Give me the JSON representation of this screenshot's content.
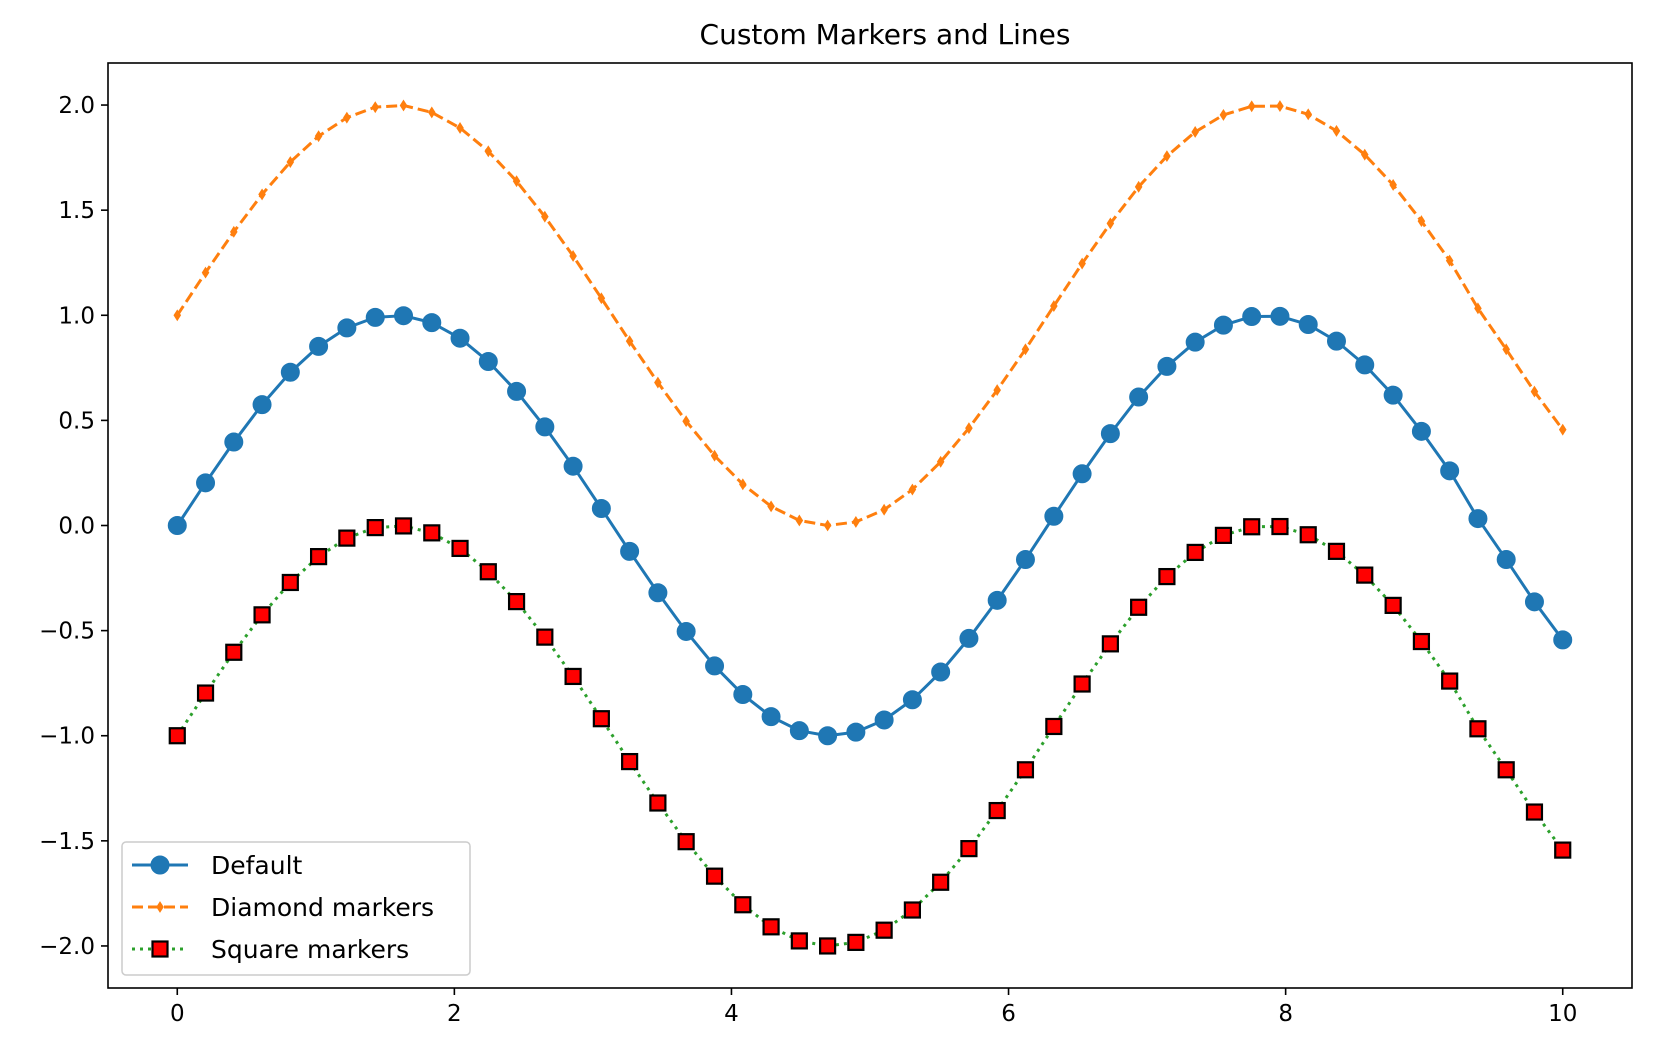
{
  "chart_data": {
    "type": "line",
    "title": "Custom Markers and Lines",
    "xlabel": "",
    "ylabel": "",
    "xlim": [
      -0.5,
      10.5
    ],
    "ylim": [
      -2.2,
      2.2
    ],
    "xticks": [
      0,
      2,
      4,
      6,
      8,
      10
    ],
    "xtick_labels": [
      "0",
      "2",
      "4",
      "6",
      "8",
      "10"
    ],
    "yticks": [
      -2.0,
      -1.5,
      -1.0,
      -0.5,
      0.0,
      0.5,
      1.0,
      1.5,
      2.0
    ],
    "ytick_labels": [
      "−2.0",
      "−1.5",
      "−1.0",
      "−0.5",
      "0.0",
      "0.5",
      "1.0",
      "1.5",
      "2.0"
    ],
    "grid": false,
    "legend_position": "lower-left",
    "x": [
      0.0,
      0.204,
      0.408,
      0.612,
      0.816,
      1.02,
      1.224,
      1.429,
      1.633,
      1.837,
      2.041,
      2.245,
      2.449,
      2.653,
      2.857,
      3.061,
      3.265,
      3.469,
      3.673,
      3.878,
      4.082,
      4.286,
      4.49,
      4.694,
      4.898,
      5.102,
      5.306,
      5.51,
      5.714,
      5.918,
      6.122,
      6.327,
      6.531,
      6.735,
      6.939,
      7.143,
      7.347,
      7.551,
      7.755,
      7.959,
      8.163,
      8.367,
      8.571,
      8.776,
      8.98,
      9.184,
      9.388,
      9.592,
      9.796,
      10.0
    ],
    "series": [
      {
        "name": "Default",
        "color": "#1f77b4",
        "linestyle": "solid",
        "marker": "circle",
        "values": [
          0.0,
          0.203,
          0.397,
          0.575,
          0.729,
          0.852,
          0.94,
          0.99,
          0.998,
          0.965,
          0.891,
          0.78,
          0.638,
          0.469,
          0.282,
          0.081,
          -0.123,
          -0.32,
          -0.504,
          -0.668,
          -0.804,
          -0.909,
          -0.976,
          -1.0,
          -0.983,
          -0.925,
          -0.829,
          -0.697,
          -0.537,
          -0.356,
          -0.162,
          0.044,
          0.246,
          0.437,
          0.611,
          0.757,
          0.872,
          0.953,
          0.994,
          0.995,
          0.956,
          0.877,
          0.764,
          0.62,
          0.448,
          0.26,
          0.033,
          -0.162,
          -0.363,
          -0.544
        ]
      },
      {
        "name": "Diamond markers",
        "color": "#ff7f0e",
        "linestyle": "dashed",
        "marker": "thin-diamond",
        "values": [
          1.0,
          1.203,
          1.397,
          1.575,
          1.729,
          1.852,
          1.94,
          1.99,
          1.998,
          1.965,
          1.891,
          1.78,
          1.638,
          1.469,
          1.282,
          1.081,
          0.877,
          0.68,
          0.496,
          0.332,
          0.196,
          0.091,
          0.024,
          0.0,
          0.017,
          0.075,
          0.171,
          0.303,
          0.463,
          0.644,
          0.838,
          1.044,
          1.246,
          1.437,
          1.611,
          1.757,
          1.872,
          1.953,
          1.994,
          1.995,
          1.956,
          1.877,
          1.764,
          1.62,
          1.448,
          1.26,
          1.033,
          0.838,
          0.637,
          0.456
        ]
      },
      {
        "name": "Square markers",
        "color": "#2ca02c",
        "linestyle": "dotted",
        "marker": "square",
        "marker_face_color": "#ff0000",
        "marker_edge_color": "#000000",
        "values": [
          -1.0,
          -0.797,
          -0.603,
          -0.425,
          -0.271,
          -0.148,
          -0.06,
          -0.01,
          -0.002,
          -0.035,
          -0.109,
          -0.22,
          -0.362,
          -0.531,
          -0.718,
          -0.919,
          -1.123,
          -1.32,
          -1.504,
          -1.668,
          -1.804,
          -1.909,
          -1.976,
          -2.0,
          -1.983,
          -1.925,
          -1.829,
          -1.697,
          -1.537,
          -1.356,
          -1.162,
          -0.956,
          -0.754,
          -0.563,
          -0.389,
          -0.243,
          -0.128,
          -0.047,
          -0.006,
          -0.005,
          -0.044,
          -0.123,
          -0.236,
          -0.38,
          -0.552,
          -0.74,
          -0.967,
          -1.162,
          -1.363,
          -1.544
        ]
      }
    ]
  }
}
